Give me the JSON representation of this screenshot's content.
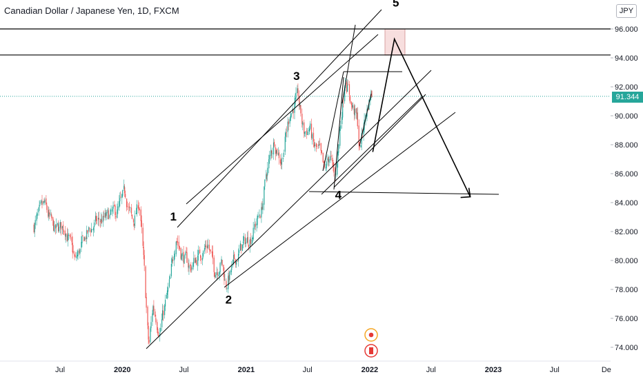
{
  "header": {
    "title": "Canadian Dollar / Japanese Yen, 1D, FXCM",
    "currency": "JPY"
  },
  "chart_data": {
    "type": "candlestick",
    "symbol": "CADJPY",
    "interval": "1D",
    "source": "FXCM",
    "last_price": "91.344",
    "y_ticks": [
      "74.000",
      "76.000",
      "78.000",
      "80.000",
      "82.000",
      "84.000",
      "86.000",
      "88.000",
      "90.000",
      "92.000",
      "94.000",
      "96.000"
    ],
    "ylim": [
      73.3,
      97.5
    ],
    "x_ticks": [
      {
        "label": "Jul",
        "date": "2019-07-01"
      },
      {
        "label": "2020",
        "date": "2020-01-01"
      },
      {
        "label": "Jul",
        "date": "2020-07-01"
      },
      {
        "label": "2021",
        "date": "2021-01-01"
      },
      {
        "label": "Jul",
        "date": "2021-07-01"
      },
      {
        "label": "2022",
        "date": "2022-01-01"
      },
      {
        "label": "Jul",
        "date": "2022-07-01"
      },
      {
        "label": "2023",
        "date": "2023-01-01"
      },
      {
        "label": "Jul",
        "date": "2023-07-01"
      },
      {
        "label": "De",
        "date": "2023-12-01"
      }
    ],
    "colors": {
      "up": "#26a69a",
      "down": "#ef5350",
      "drawing": "#000000",
      "price_line": "#26a69a",
      "zone": "#f7dede"
    },
    "price_path": [
      [
        "2019-04-15",
        82.4
      ],
      [
        "2019-05-15",
        83.8
      ],
      [
        "2019-06-15",
        82.0
      ],
      [
        "2019-07-15",
        82.4
      ],
      [
        "2019-08-15",
        79.9
      ],
      [
        "2019-09-15",
        81.7
      ],
      [
        "2019-10-15",
        82.6
      ],
      [
        "2019-11-15",
        82.9
      ],
      [
        "2019-12-15",
        83.3
      ],
      [
        "2020-01-10",
        84.6
      ],
      [
        "2020-02-01",
        82.5
      ],
      [
        "2020-02-20",
        84.0
      ],
      [
        "2020-03-01",
        81.0
      ],
      [
        "2020-03-19",
        74.0
      ],
      [
        "2020-04-01",
        76.8
      ],
      [
        "2020-04-20",
        75.2
      ],
      [
        "2020-05-20",
        78.3
      ],
      [
        "2020-06-08",
        81.8
      ],
      [
        "2020-06-25",
        80.4
      ],
      [
        "2020-07-20",
        79.5
      ],
      [
        "2020-08-15",
        80.4
      ],
      [
        "2020-09-10",
        81.2
      ],
      [
        "2020-09-29",
        79.3
      ],
      [
        "2020-10-20",
        79.9
      ],
      [
        "2020-11-02",
        78.3
      ],
      [
        "2020-11-25",
        79.7
      ],
      [
        "2020-12-20",
        81.0
      ],
      [
        "2021-01-15",
        81.7
      ],
      [
        "2021-02-15",
        83.5
      ],
      [
        "2021-03-05",
        86.4
      ],
      [
        "2021-03-25",
        88.3
      ],
      [
        "2021-04-15",
        86.9
      ],
      [
        "2021-05-10",
        90.2
      ],
      [
        "2021-06-03",
        91.2
      ],
      [
        "2021-06-20",
        88.8
      ],
      [
        "2021-07-08",
        89.2
      ],
      [
        "2021-07-20",
        87.8
      ],
      [
        "2021-08-05",
        87.5
      ],
      [
        "2021-08-20",
        86.0
      ],
      [
        "2021-09-05",
        87.4
      ],
      [
        "2021-09-20",
        85.4
      ],
      [
        "2021-10-05",
        89.0
      ],
      [
        "2021-10-21",
        92.8
      ],
      [
        "2021-11-08",
        90.8
      ],
      [
        "2021-11-25",
        89.7
      ],
      [
        "2021-12-02",
        87.6
      ],
      [
        "2021-12-15",
        89.5
      ],
      [
        "2022-01-05",
        91.6
      ],
      [
        "2022-01-10",
        91.3
      ]
    ],
    "annotations": [
      {
        "label": "1",
        "date": "2020-06-08",
        "price": 81.8
      },
      {
        "label": "2",
        "date": "2020-11-02",
        "price": 78.3
      },
      {
        "label": "3",
        "date": "2021-06-03",
        "price": 91.2
      },
      {
        "label": "4",
        "date": "2021-09-20",
        "price": 85.4
      },
      {
        "label": "5",
        "date": "2022-03-15",
        "price": 95.3
      }
    ],
    "horizontal_levels": [
      96.0,
      94.2
    ],
    "projection_path": [
      [
        "2022-01-10",
        87.5
      ],
      [
        "2022-03-15",
        95.3
      ],
      [
        "2022-10-25",
        84.4
      ]
    ],
    "target_zone": {
      "from": "2022-02-15",
      "to": "2022-04-15",
      "low": 94.2,
      "high": 96.0
    },
    "grid": false,
    "legend": "none"
  }
}
